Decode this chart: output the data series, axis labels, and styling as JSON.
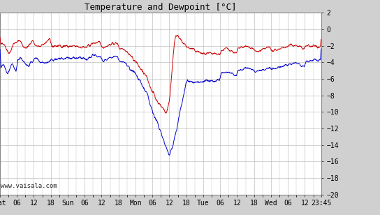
{
  "title": "Temperature and Dewpoint [°C]",
  "ylim": [
    -20,
    2
  ],
  "background_color": "#d0d0d0",
  "plot_bg_color": "#ffffff",
  "grid_color": "#c0c0c0",
  "temp_color": "#cc0000",
  "dewp_color": "#0000cc",
  "watermark": "www.vaisala.com",
  "x_tick_labels": [
    "Sat",
    "06",
    "12",
    "18",
    "Sun",
    "06",
    "12",
    "18",
    "Mon",
    "06",
    "12",
    "18",
    "Tue",
    "06",
    "12",
    "18",
    "Wed",
    "06",
    "12",
    "23:45"
  ],
  "x_tick_positions": [
    0,
    6,
    12,
    18,
    24,
    30,
    36,
    42,
    48,
    54,
    60,
    66,
    72,
    78,
    84,
    90,
    96,
    102,
    108,
    113.75
  ],
  "total_hours": 113.75,
  "line_width": 0.7,
  "figsize": [
    5.44,
    3.08
  ],
  "dpi": 100
}
